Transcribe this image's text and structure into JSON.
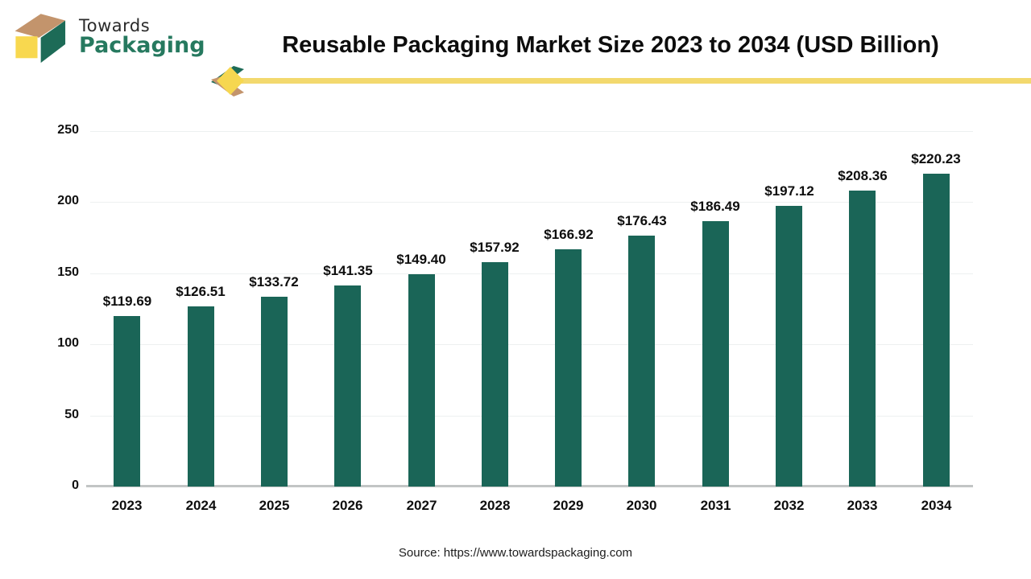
{
  "brand": {
    "line1": "Towards",
    "line2": "Packaging"
  },
  "title": "Reusable Packaging Market Size 2023 to 2034 (USD Billion)",
  "source": "Source: https://www.towardspackaging.com",
  "chart_data": {
    "type": "bar",
    "title": "Reusable Packaging Market Size 2023 to 2034 (USD Billion)",
    "unit": "USD Billion",
    "categories": [
      "2023",
      "2024",
      "2025",
      "2026",
      "2027",
      "2028",
      "2029",
      "2030",
      "2031",
      "2032",
      "2033",
      "2034"
    ],
    "values": [
      119.69,
      126.51,
      133.72,
      141.35,
      149.4,
      157.92,
      166.92,
      176.43,
      186.49,
      197.12,
      208.36,
      220.23
    ],
    "value_labels": [
      "$119.69",
      "$126.51",
      "$133.72",
      "$141.35",
      "$149.40",
      "$157.92",
      "$166.92",
      "$176.43",
      "$186.49",
      "$197.12",
      "$208.36",
      "$220.23"
    ],
    "y_ticks": [
      0,
      50,
      100,
      150,
      200,
      250
    ],
    "ylim": [
      0,
      250
    ],
    "xlabel": "",
    "ylabel": "",
    "grid": true,
    "legend": "none"
  },
  "colors": {
    "bar": "#1a6557",
    "gridline": "#edf0f0",
    "axis_line": "#c2c5c5",
    "divider_yellow": "#f3d96e",
    "diamond_yellow": "#f6d750",
    "logo_yellow": "#f8d84f",
    "logo_green": "#1d6b57",
    "logo_tan": "#c3946c",
    "brand_green": "#26795f",
    "text": "#0e0e0e"
  }
}
